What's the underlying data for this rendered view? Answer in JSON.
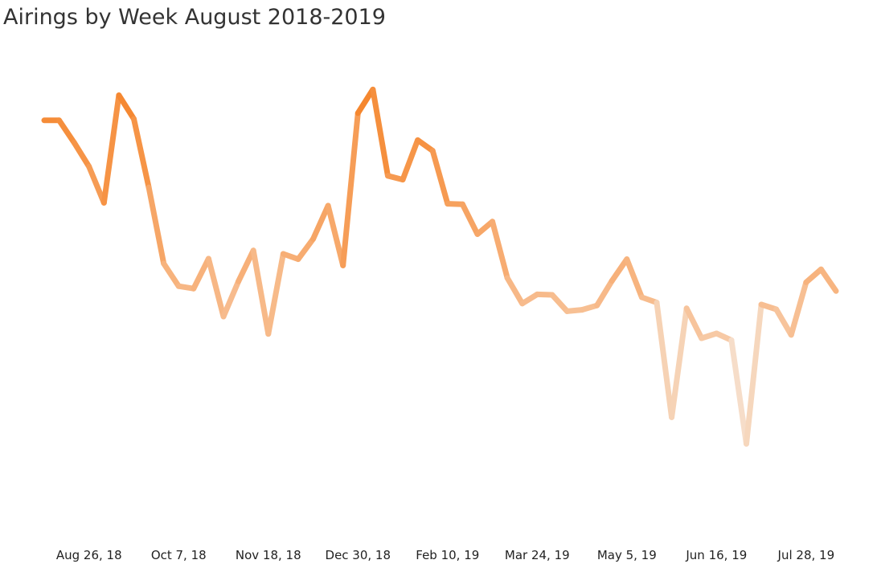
{
  "chart_data": {
    "type": "line",
    "title": "Airings by Week August 2018-2019",
    "xlabel": "",
    "ylabel": "",
    "grid": false,
    "legend": "none",
    "x_tick_labels": [
      "Aug 26, 18",
      "Oct 7, 18",
      "Nov 18, 18",
      "Dec 30, 18",
      "Feb 10, 19",
      "Mar 24, 19",
      "May 5, 19",
      "Jun 16, 19",
      "Jul 28, 19"
    ],
    "tick_every": 6,
    "tick_start_index": 3,
    "ylim": [
      0,
      100
    ],
    "values": [
      81.7,
      81.7,
      77.1,
      72.1,
      64.6,
      86.9,
      82.0,
      67.8,
      52.0,
      47.3,
      46.8,
      53.0,
      41.0,
      48.3,
      54.7,
      37.4,
      54.0,
      52.9,
      57.1,
      64.0,
      51.6,
      83.2,
      88.1,
      70.2,
      69.4,
      77.6,
      75.4,
      64.4,
      64.3,
      58.1,
      60.7,
      49.0,
      43.7,
      45.6,
      45.5,
      42.1,
      42.4,
      43.3,
      48.4,
      52.9,
      45.0,
      43.9,
      20.1,
      42.7,
      36.5,
      37.5,
      36.1,
      14.6,
      43.5,
      42.5,
      37.2,
      48.1,
      50.8,
      46.3
    ],
    "colors": {
      "high": "#f5842a",
      "mid": "#f7b27c",
      "low": "#f6f0ea"
    }
  }
}
